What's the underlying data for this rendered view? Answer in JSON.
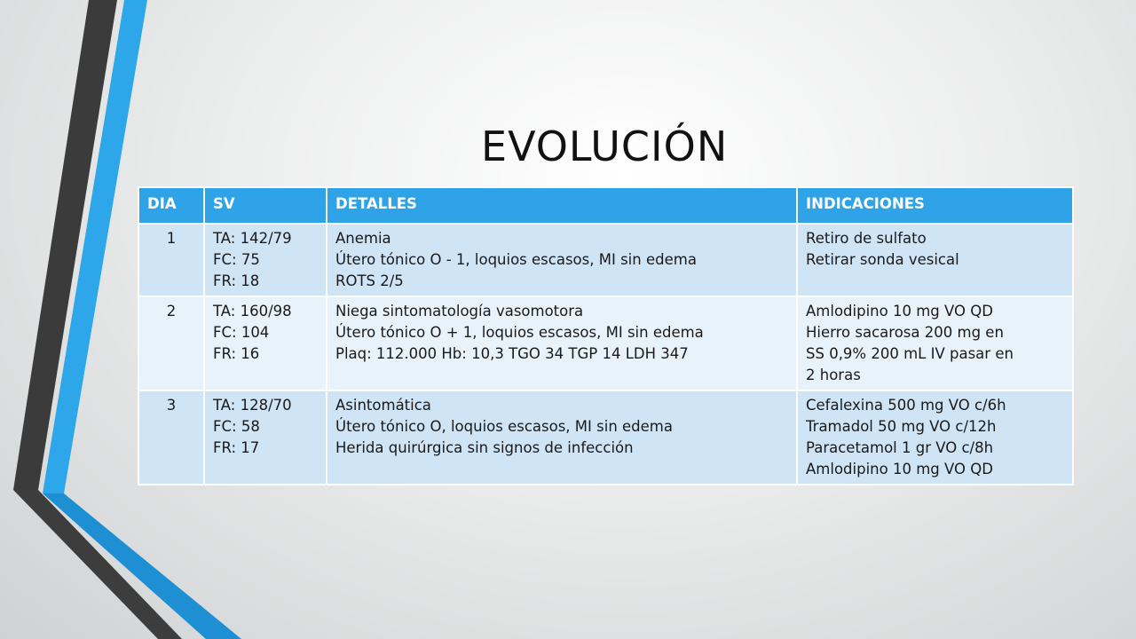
{
  "slide": {
    "title": "EVOLUCIÓN"
  },
  "colors": {
    "header_bg": "#2ea3e8",
    "row_odd_bg": "#cfe4f5",
    "row_even_bg": "#e8f2fa",
    "accent_blue": "#29a9ea",
    "accent_dark": "#3d3d3d"
  },
  "table": {
    "headers": [
      "DIA",
      "SV",
      "DETALLES",
      "INDICACIONES"
    ],
    "rows": [
      {
        "dia": "1",
        "sv": [
          "TA: 142/79",
          "FC: 75",
          "FR: 18"
        ],
        "detalles": [
          "Anemia",
          "Útero tónico O - 1, loquios escasos, MI sin edema",
          "ROTS 2/5"
        ],
        "indicaciones": [
          "Retiro de sulfato",
          "Retirar sonda vesical"
        ]
      },
      {
        "dia": "2",
        "sv": [
          "TA: 160/98",
          "FC: 104",
          "FR: 16"
        ],
        "detalles": [
          "Niega sintomatología vasomotora",
          "Útero tónico O + 1, loquios escasos, MI sin edema",
          "Plaq: 112.000 Hb: 10,3  TGO 34  TGP  14  LDH 347"
        ],
        "indicaciones": [
          "Amlodipino 10 mg VO QD",
          "Hierro sacarosa 200 mg en",
          "SS 0,9% 200 mL IV pasar en",
          "2 horas"
        ]
      },
      {
        "dia": "3",
        "sv": [
          "TA: 128/70",
          "FC: 58",
          "FR: 17"
        ],
        "detalles": [
          "Asintomática",
          "Útero tónico O, loquios escasos, MI sin edema",
          "Herida quirúrgica sin signos de infección"
        ],
        "indicaciones": [
          "Cefalexina 500 mg VO c/6h",
          "Tramadol 50 mg VO c/12h",
          "Paracetamol 1 gr VO c/8h",
          "Amlodipino 10 mg VO QD"
        ]
      }
    ]
  }
}
